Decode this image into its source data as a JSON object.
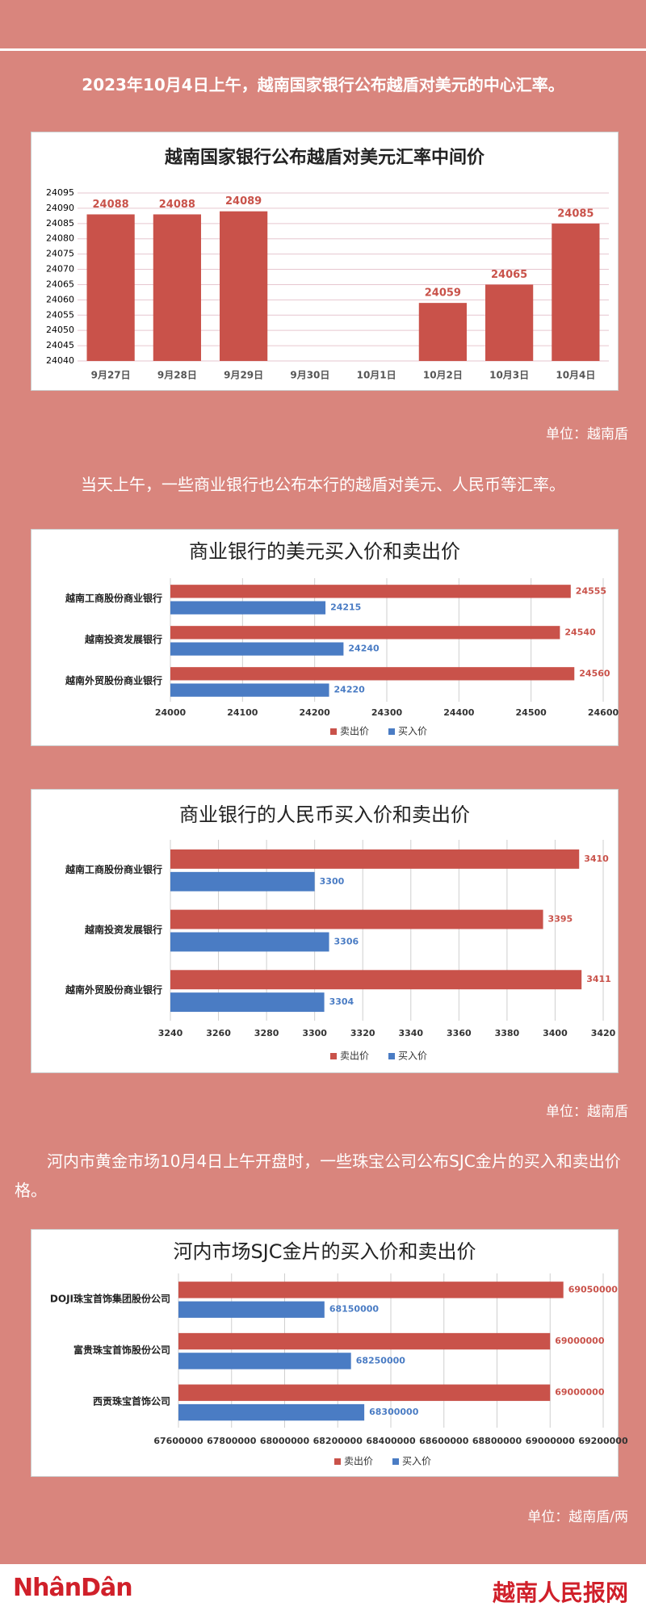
{
  "captions": [
    "2023年10月4日上午，越南国家银行公布越盾对美元的中心汇率。",
    "当天上午，一些商业银行也公布本行的越盾对美元、人民币等汇率。",
    "河内市黄金市场10月4日上午开盘时，一些珠宝公司公布SJC金片的买入和卖出价格。"
  ],
  "units": [
    "单位：越南盾",
    "单位：越南盾",
    "单位：越南盾/两"
  ],
  "footer": {
    "logo": "NhânDân",
    "site": "越南人民报网"
  },
  "chart_data": [
    {
      "type": "bar",
      "title": "越南国家银行公布越盾对美元汇率中间价",
      "categories": [
        "9月27日",
        "9月28日",
        "9月29日",
        "9月30日",
        "10月1日",
        "10月2日",
        "10月3日",
        "10月4日"
      ],
      "values": [
        24088,
        24088,
        24089,
        null,
        null,
        24059,
        24065,
        24085
      ],
      "color": "#c9524a",
      "ylim": [
        24040,
        24095
      ],
      "yticks": [
        24040,
        24045,
        24050,
        24055,
        24060,
        24065,
        24070,
        24075,
        24080,
        24085,
        24090,
        24095
      ],
      "grid": true
    },
    {
      "type": "hbar",
      "title": "商业银行的美元买入价和卖出价",
      "categories": [
        "越南工商股份商业银行",
        "越南投资发展银行",
        "越南外贸股份商业银行"
      ],
      "series": [
        {
          "name": "卖出价",
          "color": "#c9524a",
          "values": [
            24555,
            24540,
            24560
          ]
        },
        {
          "name": "买入价",
          "color": "#4a7cc4",
          "values": [
            24215,
            24240,
            24220
          ]
        }
      ],
      "xlim": [
        24000,
        24600
      ],
      "xticks": [
        24000,
        24100,
        24200,
        24300,
        24400,
        24500,
        24600
      ],
      "grid": true,
      "legend": "bottom"
    },
    {
      "type": "hbar",
      "title": "商业银行的人民币买入价和卖出价",
      "categories": [
        "越南工商股份商业银行",
        "越南投资发展银行",
        "越南外贸股份商业银行"
      ],
      "series": [
        {
          "name": "卖出价",
          "color": "#c9524a",
          "values": [
            3410,
            3395,
            3411
          ]
        },
        {
          "name": "买入价",
          "color": "#4a7cc4",
          "values": [
            3300,
            3306,
            3304
          ]
        }
      ],
      "xlim": [
        3240,
        3420
      ],
      "xticks": [
        3240,
        3260,
        3280,
        3300,
        3320,
        3340,
        3360,
        3380,
        3400,
        3420
      ],
      "grid": true,
      "legend": "bottom"
    },
    {
      "type": "hbar",
      "title": "河内市场SJC金片的买入价和卖出价",
      "categories": [
        "DOJI珠宝首饰集团股份公司",
        "富贵珠宝首饰股份公司",
        "西贡珠宝首饰公司"
      ],
      "series": [
        {
          "name": "卖出价",
          "color": "#c9524a",
          "values": [
            69050000,
            69000000,
            69000000
          ]
        },
        {
          "name": "买入价",
          "color": "#4a7cc4",
          "values": [
            68150000,
            68250000,
            68300000
          ]
        }
      ],
      "xlim": [
        67600000,
        69200000
      ],
      "xticks": [
        67600000,
        67800000,
        68000000,
        68200000,
        68400000,
        68600000,
        68800000,
        69000000,
        69200000
      ],
      "grid": true,
      "legend": "bottom"
    }
  ]
}
